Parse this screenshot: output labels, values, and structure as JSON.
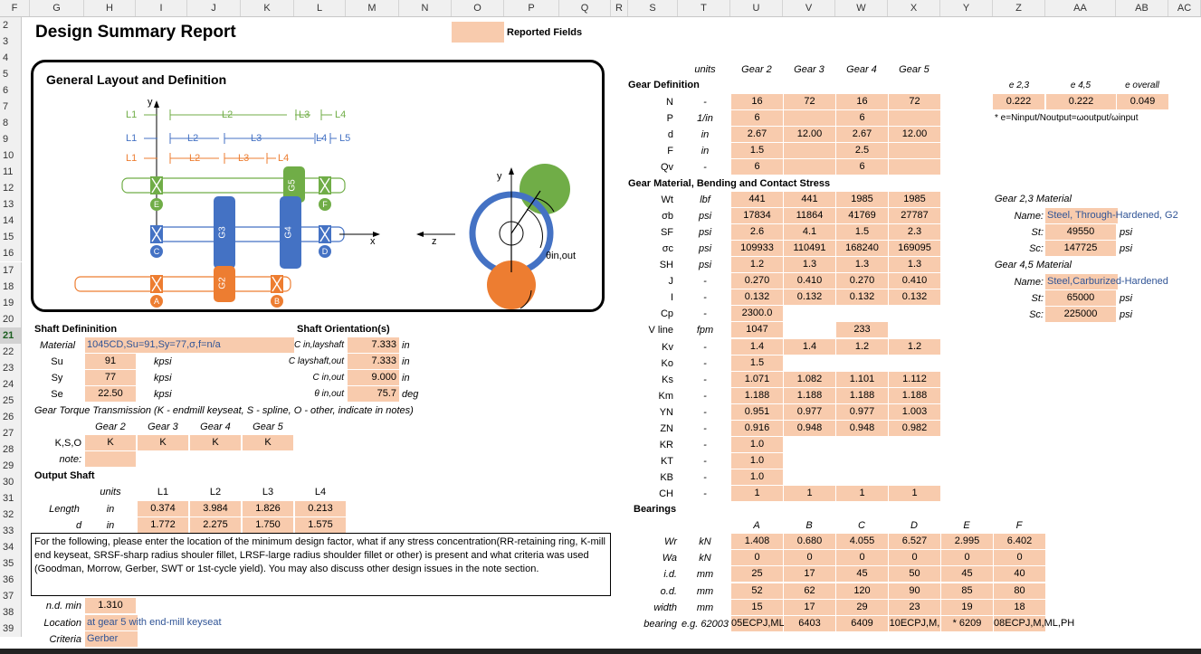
{
  "columns": [
    "F",
    "G",
    "H",
    "I",
    "J",
    "K",
    "L",
    "M",
    "N",
    "O",
    "P",
    "Q",
    "R",
    "S",
    "T",
    "U",
    "V",
    "W",
    "X",
    "Y",
    "Z",
    "AA",
    "AB",
    "AC"
  ],
  "rows": [
    "2",
    "3",
    "4",
    "5",
    "6",
    "7",
    "8",
    "9",
    "10",
    "11",
    "12",
    "13",
    "14",
    "15",
    "16",
    "17",
    "18",
    "19",
    "20",
    "21",
    "22",
    "23",
    "24",
    "25",
    "26",
    "27",
    "28",
    "29",
    "30",
    "31",
    "32",
    "33",
    "34",
    "35",
    "36",
    "37",
    "38",
    "39"
  ],
  "selected_row": "21",
  "title": "Design Summary Report",
  "legend": {
    "label": "Reported Fields",
    "swatch_color": "#f8cbad"
  },
  "layout": {
    "heading": "General Layout and Definition",
    "y_axis": "y",
    "x_axis": "x",
    "z_axis": "z",
    "dims_green": [
      "L1",
      "L2",
      "L3",
      "L4"
    ],
    "dims_blue": [
      "L1",
      "L2",
      "L3",
      "L4",
      "L5"
    ],
    "dims_orange": [
      "L1",
      "L2",
      "L3",
      "L4"
    ],
    "gears": [
      "G5",
      "G3",
      "G4",
      "G2"
    ],
    "bearings": [
      "E",
      "F",
      "C",
      "D",
      "A",
      "B"
    ],
    "angle_label": "θin,out",
    "colors": {
      "green": "#70ad47",
      "blue": "#4472c4",
      "orange": "#ed7d31"
    }
  },
  "shaft_def": {
    "heading": "Shaft Defininition",
    "material_label": "Material",
    "material_value": "1045CD,Su=91,Sy=77,σ,f=n/a",
    "rows": [
      {
        "label": "Su",
        "value": "91",
        "unit": "kpsi"
      },
      {
        "label": "Sy",
        "value": "77",
        "unit": "kpsi"
      },
      {
        "label": "Se",
        "value": "22.50",
        "unit": "kpsi"
      }
    ],
    "torque_note": "Gear Torque Transmission (K - endmill keyseat, S - spline, O - other, indicate in notes)",
    "gear_headers": [
      "Gear 2",
      "Gear 3",
      "Gear 4",
      "Gear 5"
    ],
    "kso_label": "K,S,O",
    "kso_values": [
      "K",
      "K",
      "K",
      "K"
    ],
    "note_label": "note:"
  },
  "shaft_orient": {
    "heading": "Shaft Orientation(s)",
    "rows": [
      {
        "label": "C in,layshaft",
        "value": "7.333",
        "unit": "in"
      },
      {
        "label": "C layshaft,out",
        "value": "7.333",
        "unit": "in"
      },
      {
        "label": "C in,out",
        "value": "9.000",
        "unit": "in"
      },
      {
        "label": "θ in,out",
        "value": "75.7",
        "unit": "deg"
      }
    ]
  },
  "output_shaft": {
    "heading": "Output Shaft",
    "units_label": "units",
    "headers": [
      "L1",
      "L2",
      "L3",
      "L4"
    ],
    "length_label": "Length",
    "length_unit": "in",
    "length_values": [
      "0.374",
      "3.984",
      "1.826",
      "0.213"
    ],
    "d_label": "d",
    "d_unit": "in",
    "d_values": [
      "1.772",
      "2.275",
      "1.750",
      "1.575"
    ]
  },
  "note_text": "For the following, please enter the location of the minimum design factor, what if any stress concentration(RR-retaining ring, K-mill end keyseat, SRSF-sharp radius shouler fillet, LRSF-large radius shoulder fillet or other) is present and what criteria was used (Goodman, Morrow, Gerber, SWT or 1st-cycle yield). You may also discuss other design issues in the note section.",
  "nd": {
    "label": "n.d. min",
    "value": "1.310"
  },
  "location": {
    "label": "Location",
    "value": "at gear 5 with end-mill keyseat"
  },
  "criteria": {
    "label": "Criteria",
    "value": "Gerber"
  },
  "gear_def": {
    "heading": "Gear Definition",
    "units_label": "units",
    "col_headers": [
      "Gear 2",
      "Gear 3",
      "Gear 4",
      "Gear 5"
    ],
    "rows": [
      {
        "sym": "N",
        "unit": "-",
        "vals": [
          "16",
          "72",
          "16",
          "72"
        ]
      },
      {
        "sym": "P",
        "unit": "1/in",
        "vals": [
          "6",
          "",
          "6",
          ""
        ]
      },
      {
        "sym": "d",
        "unit": "in",
        "vals": [
          "2.67",
          "12.00",
          "2.67",
          "12.00"
        ]
      },
      {
        "sym": "F",
        "unit": "in",
        "vals": [
          "1.5",
          "",
          "2.5",
          ""
        ]
      },
      {
        "sym": "Qv",
        "unit": "-",
        "vals": [
          "6",
          "",
          "6",
          ""
        ]
      }
    ]
  },
  "stress": {
    "heading": "Gear Material, Bending and Contact Stress",
    "rows": [
      {
        "sym": "Wt",
        "unit": "lbf",
        "vals": [
          "441",
          "441",
          "1985",
          "1985"
        ]
      },
      {
        "sym": "σb",
        "unit": "psi",
        "vals": [
          "17834",
          "11864",
          "41769",
          "27787"
        ]
      },
      {
        "sym": "SF",
        "unit": "psi",
        "vals": [
          "2.6",
          "4.1",
          "1.5",
          "2.3"
        ]
      },
      {
        "sym": "σc",
        "unit": "psi",
        "vals": [
          "109933",
          "110491",
          "168240",
          "169095"
        ]
      },
      {
        "sym": "SH",
        "unit": "psi",
        "vals": [
          "1.2",
          "1.3",
          "1.3",
          "1.3"
        ]
      },
      {
        "sym": "J",
        "unit": "-",
        "vals": [
          "0.270",
          "0.410",
          "0.270",
          "0.410"
        ]
      },
      {
        "sym": "I",
        "unit": "-",
        "vals": [
          "0.132",
          "0.132",
          "0.132",
          "0.132"
        ]
      },
      {
        "sym": "Cp",
        "unit": "-",
        "vals": [
          "2300.0",
          "",
          "",
          ""
        ]
      },
      {
        "sym": "V line",
        "unit": "fpm",
        "vals": [
          "1047",
          "",
          "233",
          ""
        ]
      },
      {
        "sym": "Kv",
        "unit": "-",
        "vals": [
          "1.4",
          "1.4",
          "1.2",
          "1.2"
        ]
      },
      {
        "sym": "Ko",
        "unit": "-",
        "vals": [
          "1.5",
          "",
          "",
          ""
        ]
      },
      {
        "sym": "Ks",
        "unit": "-",
        "vals": [
          "1.071",
          "1.082",
          "1.101",
          "1.112"
        ]
      },
      {
        "sym": "Km",
        "unit": "-",
        "vals": [
          "1.188",
          "1.188",
          "1.188",
          "1.188"
        ]
      },
      {
        "sym": "YN",
        "unit": "-",
        "vals": [
          "0.951",
          "0.977",
          "0.977",
          "1.003"
        ]
      },
      {
        "sym": "ZN",
        "unit": "-",
        "vals": [
          "0.916",
          "0.948",
          "0.948",
          "0.982"
        ]
      },
      {
        "sym": "KR",
        "unit": "-",
        "vals": [
          "1.0",
          "",
          "",
          ""
        ]
      },
      {
        "sym": "KT",
        "unit": "-",
        "vals": [
          "1.0",
          "",
          "",
          ""
        ]
      },
      {
        "sym": "KB",
        "unit": "-",
        "vals": [
          "1.0",
          "",
          "",
          ""
        ]
      },
      {
        "sym": "CH",
        "unit": "-",
        "vals": [
          "1",
          "1",
          "1",
          "1"
        ]
      }
    ]
  },
  "efficiency": {
    "headers": [
      "e 2,3",
      "e 4,5",
      "e overall"
    ],
    "values": [
      "0.222",
      "0.222",
      "0.049"
    ],
    "note": "* e=Ninput/Noutput=ωoutput/ωinput"
  },
  "mat23": {
    "heading": "Gear 2,3 Material",
    "name_label": "Name:",
    "name_value": "Steel, Through-Hardened, G2",
    "st_label": "St:",
    "st_value": "49550",
    "st_unit": "psi",
    "sc_label": "Sc:",
    "sc_value": "147725",
    "sc_unit": "psi"
  },
  "mat45": {
    "heading": "Gear 4,5 Material",
    "name_label": "Name:",
    "name_value": "Steel,Carburized-Hardened",
    "st_label": "St:",
    "st_value": "65000",
    "st_unit": "psi",
    "sc_label": "Sc:",
    "sc_value": "225000",
    "sc_unit": "psi"
  },
  "bearings": {
    "heading": "Bearings",
    "headers": [
      "A",
      "B",
      "C",
      "D",
      "E",
      "F"
    ],
    "rows": [
      {
        "label": "Wr",
        "unit": "kN",
        "vals": [
          "1.408",
          "0.680",
          "4.055",
          "6.527",
          "2.995",
          "6.402"
        ]
      },
      {
        "label": "Wa",
        "unit": "kN",
        "vals": [
          "0",
          "0",
          "0",
          "0",
          "0",
          "0"
        ]
      },
      {
        "label": "i.d.",
        "unit": "mm",
        "vals": [
          "25",
          "17",
          "45",
          "50",
          "45",
          "40"
        ]
      },
      {
        "label": "o.d.",
        "unit": "mm",
        "vals": [
          "52",
          "62",
          "120",
          "90",
          "85",
          "80"
        ]
      },
      {
        "label": "width",
        "unit": "mm",
        "vals": [
          "15",
          "17",
          "29",
          "23",
          "19",
          "18"
        ]
      },
      {
        "label": "bearing",
        "unit": "e.g. 62003",
        "vals": [
          "05ECPJ,ML",
          "6403",
          "6409",
          "10ECPJ,M,",
          "* 6209",
          "08ECPJ,M,ML,PH"
        ]
      }
    ]
  }
}
